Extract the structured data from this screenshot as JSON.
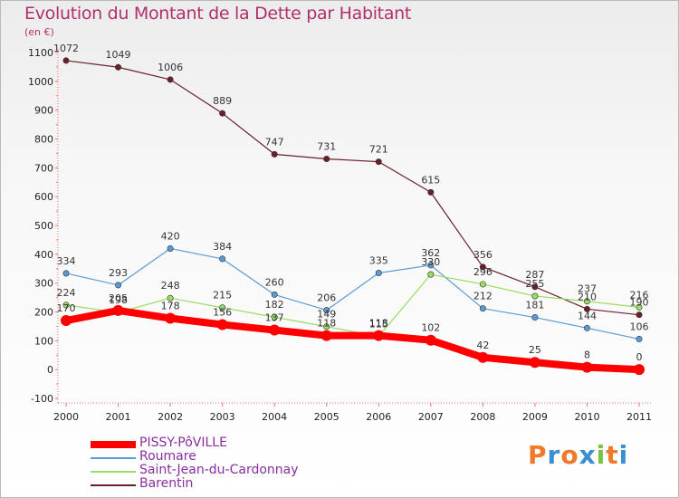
{
  "title": "Evolution du Montant de la Dette par Habitant",
  "unit": "(en €)",
  "logo": {
    "text": "Proxiti",
    "letters": [
      "P",
      "r",
      "o",
      "x",
      "i",
      "t",
      "i"
    ],
    "colors": [
      "#f07a2a",
      "#3b8fd0",
      "#f07a2a",
      "#3b8fd0",
      "#7bc142",
      "#f07a2a",
      "#3b8fd0"
    ]
  },
  "chart_data": {
    "type": "line",
    "x": [
      "2000",
      "2001",
      "2002",
      "2003",
      "2004",
      "2005",
      "2006",
      "2007",
      "2008",
      "2009",
      "2010",
      "2011"
    ],
    "ylim": [
      -100,
      1100
    ],
    "yticks": [
      -100,
      0,
      100,
      200,
      300,
      400,
      500,
      600,
      700,
      800,
      900,
      1000,
      1100
    ],
    "grid": false,
    "legend_position": "bottom-left",
    "series": [
      {
        "name": "PISSY-PôVILLE",
        "color": "#ff0000",
        "values": [
          170,
          205,
          178,
          156,
          137,
          118,
          118,
          102,
          42,
          25,
          8,
          0
        ],
        "labels": [
          "170",
          "205",
          "178",
          "156",
          "137",
          "118",
          "118",
          "102",
          "42",
          "25",
          "8",
          "0"
        ]
      },
      {
        "name": "Roumare",
        "color": "#5b9bd5",
        "values": [
          334,
          293,
          420,
          384,
          260,
          206,
          335,
          362,
          212,
          181,
          144,
          106
        ],
        "labels": [
          "334",
          "293",
          "420",
          "384",
          "260",
          "206",
          "335",
          "362",
          "212",
          "181",
          "144",
          "106"
        ]
      },
      {
        "name": "Saint-Jean-du-Cardonnay",
        "color": "#99dd66",
        "values": [
          224,
          198,
          248,
          215,
          182,
          149,
          115,
          330,
          296,
          255,
          237,
          216
        ],
        "labels": [
          "224",
          "198",
          "248",
          "215",
          "182",
          "149",
          "115",
          "330",
          "296",
          "255",
          "237",
          "216"
        ]
      },
      {
        "name": "Barentin",
        "color": "#6b1f2a",
        "values": [
          1072,
          1049,
          1006,
          889,
          747,
          731,
          721,
          615,
          356,
          287,
          210,
          190
        ],
        "labels": [
          "1072",
          "1049",
          "1006",
          "889",
          "747",
          "731",
          "721",
          "615",
          "356",
          "287",
          "210",
          "190"
        ]
      }
    ]
  }
}
